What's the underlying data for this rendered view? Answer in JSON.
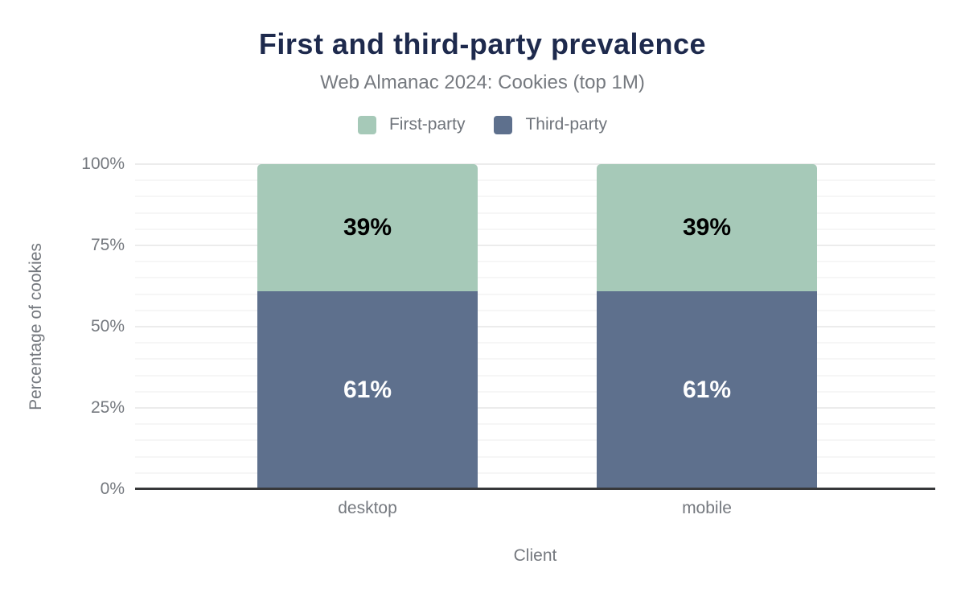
{
  "chart_data": {
    "type": "bar",
    "stacked": true,
    "title": "First and third-party prevalence",
    "subtitle": "Web Almanac 2024: Cookies (top 1M)",
    "categories": [
      "desktop",
      "mobile"
    ],
    "series": [
      {
        "name": "First-party",
        "color": "#a6c9b8",
        "label_color": "#000000",
        "values": [
          39,
          39
        ],
        "value_labels": [
          "39%",
          "39%"
        ]
      },
      {
        "name": "Third-party",
        "color": "#5e708d",
        "label_color": "#ffffff",
        "values": [
          61,
          61
        ],
        "value_labels": [
          "61%",
          "61%"
        ]
      }
    ],
    "xlabel": "Client",
    "ylabel": "Percentage of cookies",
    "ylim": [
      0,
      100
    ],
    "ytick_values": [
      0,
      25,
      50,
      75,
      100
    ],
    "ytick_labels": [
      "0%",
      "25%",
      "50%",
      "75%",
      "100%"
    ],
    "minor_grid_step_percent": 5,
    "grid": true,
    "legend_position": "top"
  },
  "colors": {
    "title": "#1e2a4d",
    "subtitle": "#75797f",
    "tick_label": "#75797f",
    "axis_title": "#75797f",
    "legend_label": "#6f747b",
    "axis_line": "#37383a",
    "major_grid": "#ececec",
    "minor_grid": "#f6f6f6",
    "background": "#ffffff"
  }
}
